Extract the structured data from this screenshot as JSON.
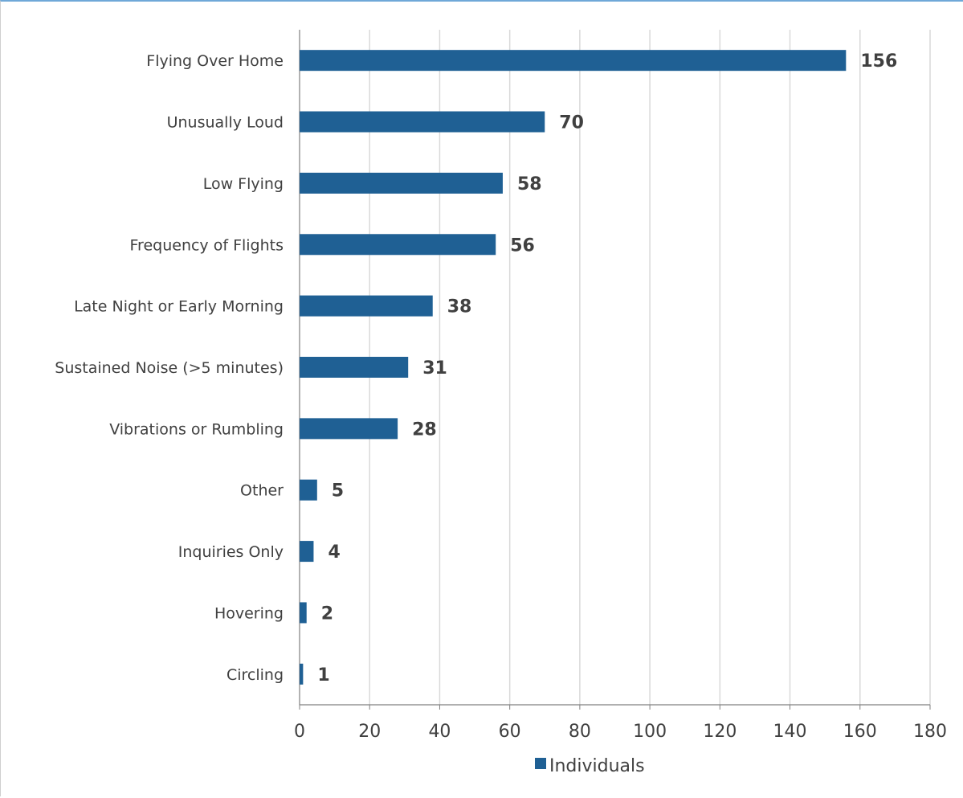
{
  "chart_data": {
    "type": "bar",
    "orientation": "horizontal",
    "categories": [
      "Flying Over Home",
      "Unusually Loud",
      "Low Flying",
      "Frequency of Flights",
      "Late Night or Early Morning",
      "Sustained Noise (>5 minutes)",
      "Vibrations or Rumbling",
      "Other",
      "Inquiries Only",
      "Hovering",
      "Circling"
    ],
    "series": [
      {
        "name": "Individuals",
        "values": [
          156,
          70,
          58,
          56,
          38,
          31,
          28,
          5,
          4,
          2,
          1
        ]
      }
    ],
    "xlim": [
      0,
      180
    ],
    "xticks": [
      "0",
      "20",
      "40",
      "60",
      "80",
      "100",
      "120",
      "140",
      "160",
      "180"
    ],
    "grid": "vertical",
    "legend_position": "bottom",
    "data_labels": true,
    "colors": {
      "bar": "#1f6094",
      "grid": "#d9d9d9",
      "axis": "#808080",
      "text": "#404040"
    }
  }
}
